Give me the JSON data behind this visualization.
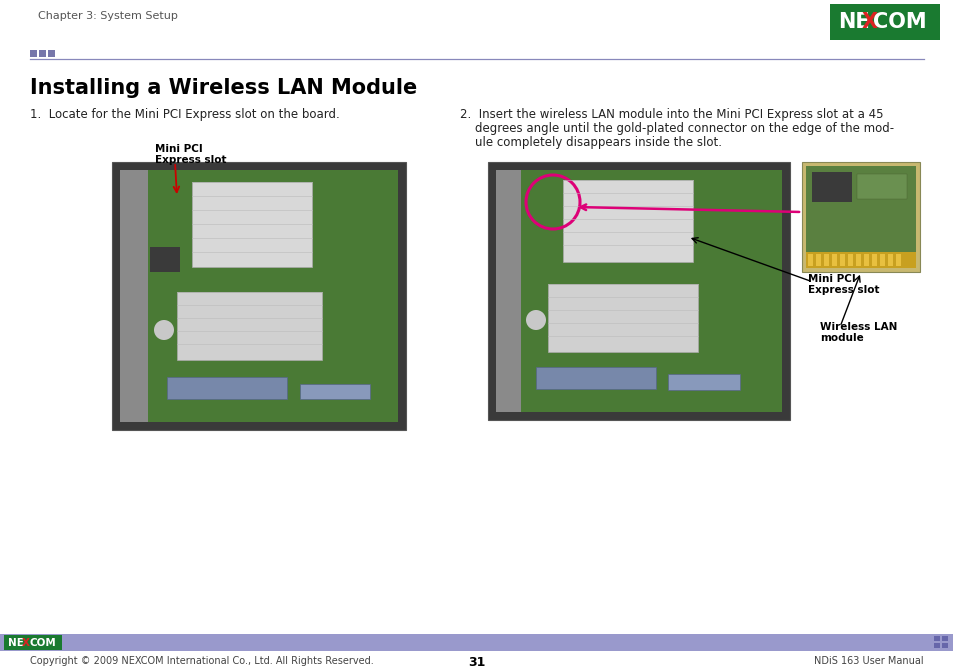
{
  "page_bg": "#ffffff",
  "header_text": "Chapter 3: System Setup",
  "header_text_color": "#555555",
  "header_text_size": 8,
  "divider_color": "#8888bb",
  "divider_sq_color": "#7777aa",
  "title": "Installing a Wireless LAN Module",
  "title_size": 15,
  "title_color": "#000000",
  "step1_text": "1.  Locate for the Mini PCI Express slot on the board.",
  "step1_size": 8.5,
  "step2_line1": "2.  Insert the wireless LAN module into the Mini PCI Express slot at a 45",
  "step2_line2": "    degrees angle until the gold-plated connector on the edge of the mod-",
  "step2_line3": "    ule completely disappears inside the slot.",
  "step2_size": 8.5,
  "label1_line1": "Mini PCI",
  "label1_line2": "Express slot",
  "label2_line1": "Mini PCI",
  "label2_line2": "Express slot",
  "label3_line1": "Wireless LAN",
  "label3_line2": "module",
  "label_size": 7.5,
  "footer_bar_color": "#9999cc",
  "footer_logo_bg": "#1a7a30",
  "footer_center_text": "31",
  "footer_left_text": "Copyright © 2009 NEXCOM International Co., Ltd. All Rights Reserved.",
  "footer_right_text": "NDiS 163 User Manual",
  "footer_text_color": "#444444",
  "footer_text_size": 7,
  "nexcom_green": "#1a7a30",
  "nexcom_red": "#dd2222"
}
